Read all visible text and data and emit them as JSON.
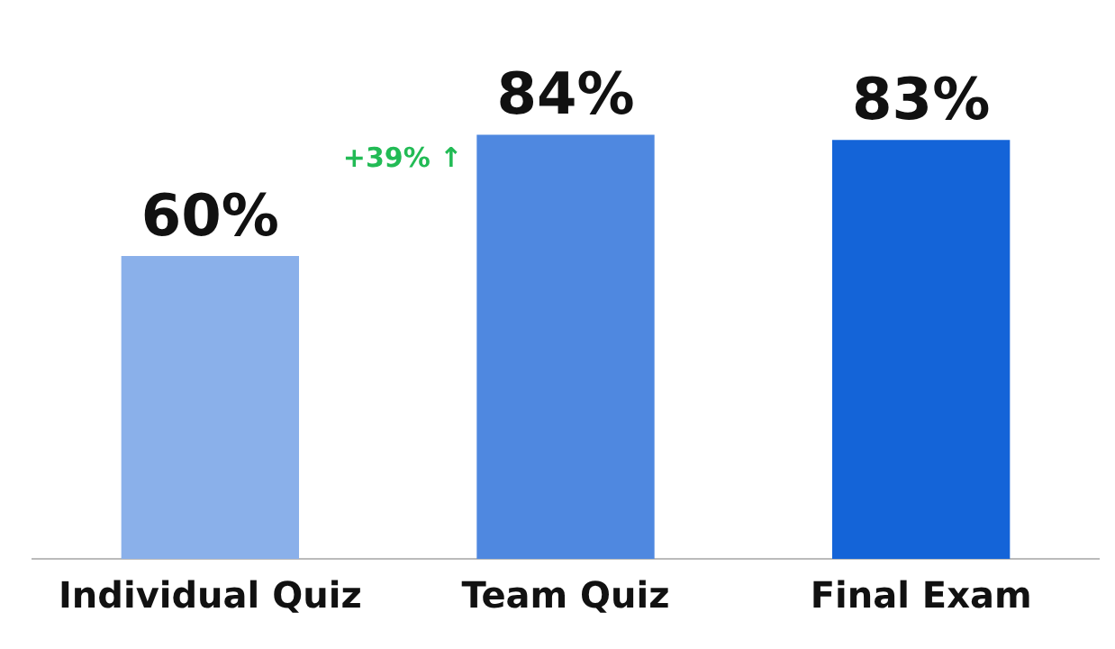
{
  "chart_data": {
    "type": "bar",
    "categories": [
      "Individual Quiz",
      "Team Quiz",
      "Final Exam"
    ],
    "values": [
      60,
      84,
      83
    ],
    "colors": [
      "#8ab0ea",
      "#4f88e0",
      "#1464d8"
    ],
    "value_labels": [
      "60%",
      "84%",
      "83%"
    ],
    "tick_labels": "x",
    "grid": false,
    "legend": false,
    "annotations": [
      "+39% ↑"
    ]
  }
}
